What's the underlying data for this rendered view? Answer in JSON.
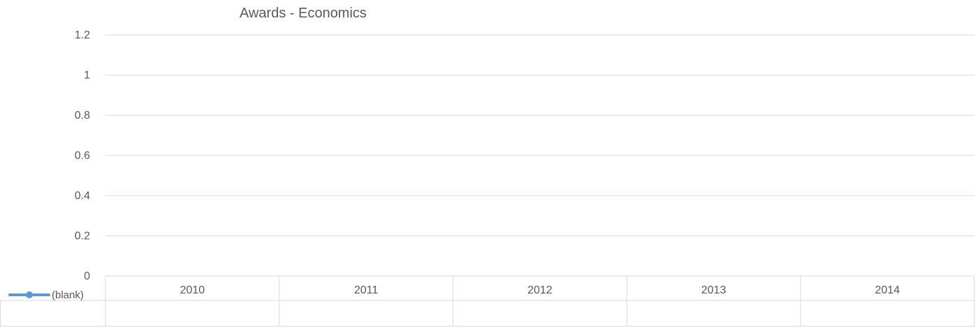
{
  "chart_data": {
    "type": "line",
    "title": "Awards  - Economics",
    "categories": [
      "2010",
      "2011",
      "2012",
      "2013",
      "2014"
    ],
    "yticks": [
      "0",
      "0.2",
      "0.4",
      "0.6",
      "0.8",
      "1",
      "1.2"
    ],
    "ylim": [
      0,
      1.2
    ],
    "grid": true,
    "legend_position": "bottom-left",
    "series": [
      {
        "name": "(blank)",
        "values": [
          null,
          null,
          null,
          null,
          null
        ],
        "color": "#5b9bd5"
      }
    ]
  }
}
